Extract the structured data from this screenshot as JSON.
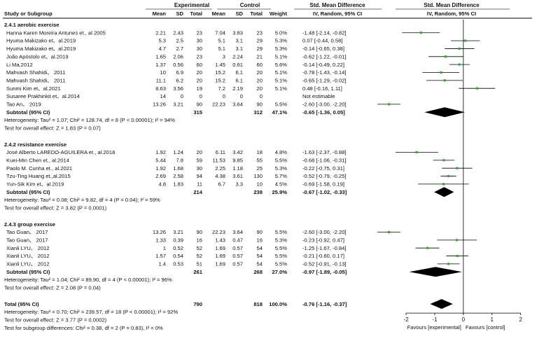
{
  "chart_data": {
    "type": "forest-plot",
    "header": {
      "group1": "Experimental",
      "group2": "Control",
      "effect_col": "Std. Mean Difference",
      "effect_sub": "IV, Random, 95% CI",
      "study_col": "Study or Subgroup",
      "mean": "Mean",
      "sd": "SD",
      "total": "Total",
      "weight": "Weight"
    },
    "subgroups": [
      {
        "title": "2.4.1 aerobic exercise",
        "studies": [
          {
            "name": "Hanna Karen Moreira Antunes et., al.2005",
            "m1": "2.21",
            "sd1": "2.43",
            "n1": "23",
            "m2": "7.04",
            "sd2": "3.83",
            "n2": "23",
            "w": "5.0%",
            "ci": "-1.48 [-2.14, -0.82]",
            "est": -1.48,
            "lo": -2.14,
            "hi": -0.82
          },
          {
            "name": "Hyuma Makizako et、al.2019",
            "m1": "5.3",
            "sd1": "2.5",
            "n1": "30",
            "m2": "5.1",
            "sd2": "3.1",
            "n2": "29",
            "w": "5.3%",
            "ci": "0.07 [-0.44, 0.58]",
            "est": 0.07,
            "lo": -0.44,
            "hi": 0.58
          },
          {
            "name": "Hyuma Makizako et、al.2019",
            "m1": "4.7",
            "sd1": "2.7",
            "n1": "30",
            "m2": "5.1",
            "sd2": "3.1",
            "n2": "29",
            "w": "5.3%",
            "ci": "-0.14 [-0.65, 0.38]",
            "est": -0.14,
            "lo": -0.65,
            "hi": 0.38
          },
          {
            "name": "João Apóstolo et、al.2019",
            "m1": "1.65",
            "sd1": "2.06",
            "n1": "23",
            "m2": "3",
            "sd2": "2.24",
            "n2": "21",
            "w": "5.1%",
            "ci": "-0.62 [-1.22, -0.01]",
            "est": -0.62,
            "lo": -1.22,
            "hi": -0.01
          },
          {
            "name": "Li Ma,2012",
            "m1": "1.37",
            "sd1": "0.56",
            "n1": "60",
            "m2": "1.45",
            "sd2": "0.61",
            "n2": "60",
            "w": "5.6%",
            "ci": "-0.14 [-0.49, 0.22]",
            "est": -0.14,
            "lo": -0.49,
            "hi": 0.22
          },
          {
            "name": "Mahvash Shahidi、 2011",
            "m1": "10",
            "sd1": "6.9",
            "n1": "20",
            "m2": "15.2",
            "sd2": "6.1",
            "n2": "20",
            "w": "5.1%",
            "ci": "-0.78 [-1.43, -0.14]",
            "est": -0.78,
            "lo": -1.43,
            "hi": -0.14
          },
          {
            "name": "Mahvash Shahidi、 2011",
            "m1": "11.1",
            "sd1": "6.2",
            "n1": "20",
            "m2": "15.2",
            "sd2": "6.1",
            "n2": "20",
            "w": "5.1%",
            "ci": "-0.65 [-1.29, -0.02]",
            "est": -0.65,
            "lo": -1.29,
            "hi": -0.02
          },
          {
            "name": "Sunmi Kim et、al.2021",
            "m1": "8.63",
            "sd1": "3.56",
            "n1": "19",
            "m2": "7.2",
            "sd2": "2.19",
            "n2": "20",
            "w": "5.1%",
            "ci": "0.48 [-0.16, 1.11]",
            "est": 0.48,
            "lo": -0.16,
            "hi": 1.11
          },
          {
            "name": "Susaree Prakhinkit et、al.2014",
            "m1": "14",
            "sd1": "0",
            "n1": "0",
            "m2": "0",
            "sd2": "0",
            "n2": "0",
            "w": "",
            "ci": "Not estimable",
            "est": null,
            "lo": null,
            "hi": null
          },
          {
            "name": "Tao An、 2019",
            "m1": "13.26",
            "sd1": "3.21",
            "n1": "90",
            "m2": "22.23",
            "sd2": "3.64",
            "n2": "90",
            "w": "5.5%",
            "ci": "-2.60 [-3.00, -2.20]",
            "est": -2.6,
            "lo": -3.0,
            "hi": -2.2
          }
        ],
        "subtotal": {
          "label": "Subtotal (95% CI)",
          "n1": "315",
          "n2": "312",
          "w": "47.1%",
          "ci": "-0.65 [-1.36, 0.05]",
          "est": -0.65,
          "lo": -1.36,
          "hi": 0.05
        },
        "heterogeneity": "Heterogeneity: Tau² = 1.07; Chi² = 128.74, df = 8 (P < 0.00001); I² = 94%",
        "overall": "Test for overall effect: Z = 1.83 (P = 0.07)"
      },
      {
        "title": "2.4.2 resistance exercise",
        "studies": [
          {
            "name": "José Alberto LAREDO-AGUILERA et., al.2018",
            "m1": "1.92",
            "sd1": "1.24",
            "n1": "20",
            "m2": "6.11",
            "sd2": "3.42",
            "n2": "18",
            "w": "4.8%",
            "ci": "-1.63 [-2.37, -0.88]",
            "est": -1.63,
            "lo": -2.37,
            "hi": -0.88
          },
          {
            "name": "Kuei-Min Chen et., al.2014",
            "m1": "5.44",
            "sd1": "7.8",
            "n1": "59",
            "m2": "11.53",
            "sd2": "9.85",
            "n2": "55",
            "w": "5.5%",
            "ci": "-0.68 [-1.06, -0.31]",
            "est": -0.68,
            "lo": -1.06,
            "hi": -0.31
          },
          {
            "name": "Paolo M. Cunha et., al.2021",
            "m1": "1.92",
            "sd1": "1.68",
            "n1": "30",
            "m2": "2.25",
            "sd2": "1.18",
            "n2": "25",
            "w": "5.3%",
            "ci": "-0.22 [-0.75, 0.31]",
            "est": -0.22,
            "lo": -0.75,
            "hi": 0.31
          },
          {
            "name": "Tzu-Ting Huang et.,al.2015",
            "m1": "2.69",
            "sd1": "2.58",
            "n1": "94",
            "m2": "4.38",
            "sd2": "3.61",
            "n2": "130",
            "w": "5.7%",
            "ci": "-0.52 [-0.79, -0.25]",
            "est": -0.52,
            "lo": -0.79,
            "hi": -0.25
          },
          {
            "name": "Yun-Sik Kim et、al.2019",
            "m1": "4.8",
            "sd1": "1.83",
            "n1": "11",
            "m2": "6.7",
            "sd2": "3.3",
            "n2": "10",
            "w": "4.5%",
            "ci": "-0.69 [-1.58, 0.19]",
            "est": -0.69,
            "lo": -1.58,
            "hi": 0.19
          }
        ],
        "subtotal": {
          "label": "Subtotal (95% CI)",
          "n1": "214",
          "n2": "238",
          "w": "25.9%",
          "ci": "-0.67 [-1.02, -0.33]",
          "est": -0.67,
          "lo": -1.02,
          "hi": -0.33
        },
        "heterogeneity": "Heterogeneity: Tau² = 0.08; Chi² = 9.82, df = 4 (P = 0.04); I² = 59%",
        "overall": "Test for overall effect: Z = 3.82 (P = 0.0001)"
      },
      {
        "title": "2.4.3 group exercise",
        "studies": [
          {
            "name": "Tao Guan、 2017",
            "m1": "13.26",
            "sd1": "3.21",
            "n1": "90",
            "m2": "22.23",
            "sd2": "3.64",
            "n2": "90",
            "w": "5.5%",
            "ci": "-2.60 [-3.00, -2.20]",
            "est": -2.6,
            "lo": -3.0,
            "hi": -2.2
          },
          {
            "name": "Tao Guan、 2017",
            "m1": "1.33",
            "sd1": "0.39",
            "n1": "16",
            "m2": "1.43",
            "sd2": "0.47",
            "n2": "16",
            "w": "5.3%",
            "ci": "-0.23 [-0.92, 0.47]",
            "est": -0.23,
            "lo": -0.92,
            "hi": 0.47
          },
          {
            "name": "Xianli LYU、 2012",
            "m1": "1",
            "sd1": "0.52",
            "n1": "52",
            "m2": "1.69",
            "sd2": "0.57",
            "n2": "54",
            "w": "5.5%",
            "ci": "-1.25 [-1.67, -0.84]",
            "est": -1.25,
            "lo": -1.67,
            "hi": -0.84
          },
          {
            "name": "Xianli LYU、 2012",
            "m1": "1.57",
            "sd1": "0.54",
            "n1": "52",
            "m2": "1.69",
            "sd2": "0.57",
            "n2": "54",
            "w": "5.5%",
            "ci": "-0.21 [-0.60, 0.17]",
            "est": -0.21,
            "lo": -0.6,
            "hi": 0.17
          },
          {
            "name": "Xianli LYU、 2012",
            "m1": "1.4",
            "sd1": "0.53",
            "n1": "51",
            "m2": "1.69",
            "sd2": "0.57",
            "n2": "54",
            "w": "5.5%",
            "ci": "-0.52 [-0.91, -0.13]",
            "est": -0.52,
            "lo": -0.91,
            "hi": -0.13
          }
        ],
        "subtotal": {
          "label": "Subtotal (95% CI)",
          "n1": "261",
          "n2": "268",
          "w": "27.0%",
          "ci": "-0.97 [-1.89, -0.05]",
          "est": -0.97,
          "lo": -1.89,
          "hi": -0.05
        },
        "heterogeneity": "Heterogeneity: Tau² = 1.04; Chi² = 89.90, df = 4 (P < 0.00001); I² = 96%",
        "overall": "Test for overall effect: Z = 2.08 (P = 0.04)"
      }
    ],
    "total": {
      "label": "Total (95% CI)",
      "n1": "790",
      "n2": "818",
      "w": "100.0%",
      "ci": "-0.76 [-1.16, -0.37]",
      "est": -0.76,
      "lo": -1.16,
      "hi": -0.37
    },
    "footer": [
      "Heterogeneity: Tau² = 0.70; Chi² = 239.57, df = 18 (P < 0.00001); I² = 92%",
      "Test for overall effect: Z = 3.77 (P = 0.0002)",
      "Test for subgroup differences: Chi² = 0.38, df = 2 (P = 0.83), I² = 0%"
    ],
    "axis": {
      "xlim": [
        -3.1,
        2.35
      ],
      "ticks": [
        -2,
        -1,
        0,
        1,
        2
      ],
      "left_label": "Favours [experimental]",
      "right_label": "Favours [control]"
    },
    "colors": {
      "text": "#111111",
      "marker": "#2fa82f",
      "line": "#000000",
      "header_line": "#444444"
    }
  }
}
